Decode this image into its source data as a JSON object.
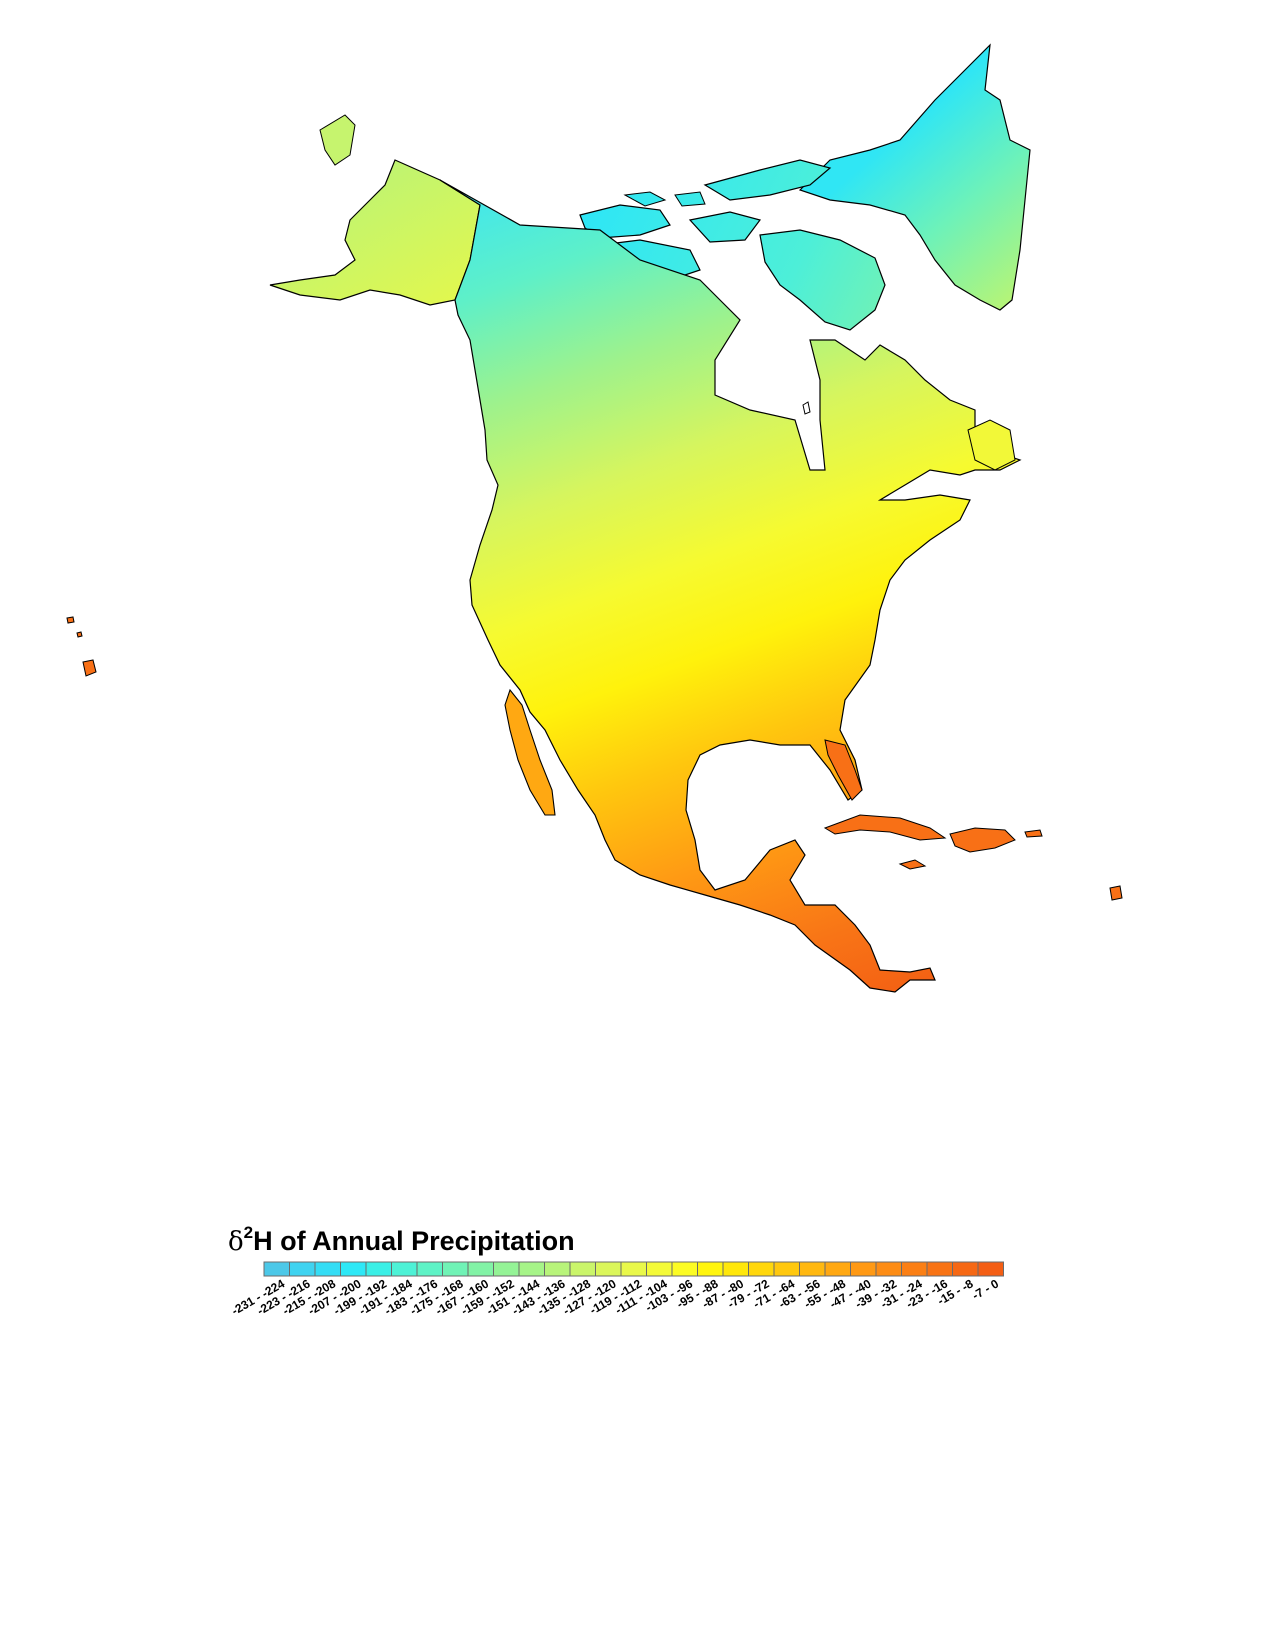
{
  "map": {
    "land_outline_color": "#000000",
    "background_color": "#ffffff"
  },
  "legend": {
    "title_symbol": "δ",
    "title_superscript": "2",
    "title_text": "H of Annual Precipitation",
    "classes": [
      {
        "label": "-231 - -224",
        "color": "#4cc8e8"
      },
      {
        "label": "-223 - -216",
        "color": "#3fd3f0"
      },
      {
        "label": "-215 - -208",
        "color": "#34ddf5"
      },
      {
        "label": "-207 - -200",
        "color": "#2ee8f6"
      },
      {
        "label": "-199 - -192",
        "color": "#3aefe6"
      },
      {
        "label": "-191 - -184",
        "color": "#4df2d6"
      },
      {
        "label": "-183 - -176",
        "color": "#5ef3c6"
      },
      {
        "label": "-175 - -168",
        "color": "#70f3b6"
      },
      {
        "label": "-167 - -160",
        "color": "#82f3a6"
      },
      {
        "label": "-159 - -152",
        "color": "#94f396"
      },
      {
        "label": "-151 - -144",
        "color": "#a6f488"
      },
      {
        "label": "-143 - -136",
        "color": "#b8f47a"
      },
      {
        "label": "-135 - -128",
        "color": "#caf56a"
      },
      {
        "label": "-127 - -120",
        "color": "#dbf65a"
      },
      {
        "label": "-119 - -112",
        "color": "#e9f84a"
      },
      {
        "label": "-111 - -104",
        "color": "#f4fa38"
      },
      {
        "label": "-103 - -96",
        "color": "#fcfc24"
      },
      {
        "label": "-95 - -88",
        "color": "#fff50e"
      },
      {
        "label": "-87 - -80",
        "color": "#ffe70a"
      },
      {
        "label": "-79 - -72",
        "color": "#ffd70c"
      },
      {
        "label": "-71 - -64",
        "color": "#ffc80e"
      },
      {
        "label": "-63 - -56",
        "color": "#ffb810"
      },
      {
        "label": "-55 - -48",
        "color": "#ffa812"
      },
      {
        "label": "-47 - -40",
        "color": "#ff9914"
      },
      {
        "label": "-39 - -32",
        "color": "#fd8c14"
      },
      {
        "label": "-31 - -24",
        "color": "#fb7f14"
      },
      {
        "label": "-23 - -16",
        "color": "#f87314"
      },
      {
        "label": "-15 - -8",
        "color": "#f66814"
      },
      {
        "label": "-7 - 0",
        "color": "#f45e14"
      }
    ]
  }
}
